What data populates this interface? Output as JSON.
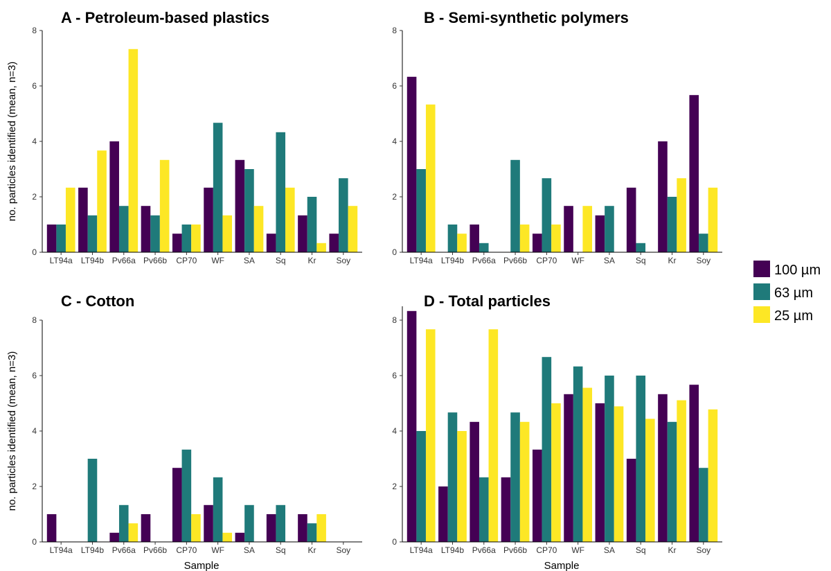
{
  "figure": {
    "y_axis_title": "no. particles identified (mean, n=3)",
    "x_axis_title": "Sample"
  },
  "legend": [
    {
      "label": "100 µm",
      "color": "#440154"
    },
    {
      "label": "63 µm",
      "color": "#1f7a7a"
    },
    {
      "label": "25 µm",
      "color": "#fde725"
    }
  ],
  "chart_data": [
    {
      "type": "bar",
      "title": "A - Petroleum-based plastics",
      "xlabel": "",
      "ylabel": "no. particles identified (mean, n=3)",
      "ylim": [
        0,
        8
      ],
      "yticks": [
        "0",
        "2",
        "4",
        "6",
        "8"
      ],
      "categories": [
        "LT94a",
        "LT94b",
        "Pv66a",
        "Pv66b",
        "CP70",
        "WF",
        "SA",
        "Sq",
        "Kr",
        "Soy"
      ],
      "series": [
        {
          "name": "100 µm",
          "values": [
            1.0,
            2.33,
            4.0,
            1.67,
            0.67,
            2.33,
            3.33,
            0.67,
            1.33,
            0.67
          ]
        },
        {
          "name": "63 µm",
          "values": [
            1.0,
            1.33,
            1.67,
            1.33,
            1.0,
            4.67,
            3.0,
            4.33,
            2.0,
            2.67
          ]
        },
        {
          "name": "25 µm",
          "values": [
            2.33,
            3.67,
            7.33,
            3.33,
            1.0,
            1.33,
            1.67,
            2.33,
            0.33,
            1.67
          ]
        }
      ]
    },
    {
      "type": "bar",
      "title": "B - Semi-synthetic polymers",
      "xlabel": "",
      "ylabel": "",
      "ylim": [
        0,
        8
      ],
      "yticks": [
        "0",
        "2",
        "4",
        "6",
        "8"
      ],
      "categories": [
        "LT94a",
        "LT94b",
        "Pv66a",
        "Pv66b",
        "CP70",
        "WF",
        "SA",
        "Sq",
        "Kr",
        "Soy"
      ],
      "series": [
        {
          "name": "100 µm",
          "values": [
            6.33,
            0,
            1.0,
            0,
            0.67,
            1.67,
            1.33,
            2.33,
            4.0,
            5.67
          ]
        },
        {
          "name": "63 µm",
          "values": [
            3.0,
            1.0,
            0.33,
            3.33,
            2.67,
            0,
            1.67,
            0.33,
            2.0,
            0.67
          ]
        },
        {
          "name": "25 µm",
          "values": [
            5.33,
            0.67,
            0,
            1.0,
            1.0,
            1.67,
            0,
            0,
            2.67,
            2.33
          ]
        }
      ]
    },
    {
      "type": "bar",
      "title": "C - Cotton",
      "xlabel": "Sample",
      "ylabel": "no. particles identified (mean, n=3)",
      "ylim": [
        0,
        8
      ],
      "yticks": [
        "0",
        "2",
        "4",
        "6",
        "8"
      ],
      "categories": [
        "LT94a",
        "LT94b",
        "Pv66a",
        "Pv66b",
        "CP70",
        "WF",
        "SA",
        "Sq",
        "Kr",
        "Soy"
      ],
      "series": [
        {
          "name": "100 µm",
          "values": [
            1.0,
            0,
            0.33,
            1.0,
            2.67,
            1.33,
            0.33,
            1.0,
            1.0,
            0
          ]
        },
        {
          "name": "63 µm",
          "values": [
            0,
            3.0,
            1.33,
            0,
            3.33,
            2.33,
            1.33,
            1.33,
            0.67,
            0
          ]
        },
        {
          "name": "25 µm",
          "values": [
            0,
            0,
            0.67,
            0,
            1.0,
            0.33,
            0,
            0,
            1.0,
            0
          ]
        }
      ]
    },
    {
      "type": "bar",
      "title": "D - Total particles",
      "xlabel": "Sample",
      "ylabel": "",
      "ylim": [
        0,
        8.5
      ],
      "yticks": [
        "0",
        "2",
        "4",
        "6",
        "8"
      ],
      "categories": [
        "LT94a",
        "LT94b",
        "Pv66a",
        "Pv66b",
        "CP70",
        "WF",
        "SA",
        "Sq",
        "Kr",
        "Soy"
      ],
      "series": [
        {
          "name": "100 µm",
          "values": [
            8.33,
            2.0,
            4.33,
            2.33,
            3.33,
            5.33,
            5.0,
            3.0,
            5.33,
            5.67
          ]
        },
        {
          "name": "63 µm",
          "values": [
            4.0,
            4.67,
            2.33,
            4.67,
            6.67,
            6.33,
            6.0,
            6.0,
            4.33,
            2.67
          ]
        },
        {
          "name": "25 µm",
          "values": [
            7.67,
            4.0,
            7.67,
            4.33,
            5.0,
            5.56,
            4.89,
            4.44,
            5.11,
            4.78
          ]
        }
      ]
    }
  ]
}
